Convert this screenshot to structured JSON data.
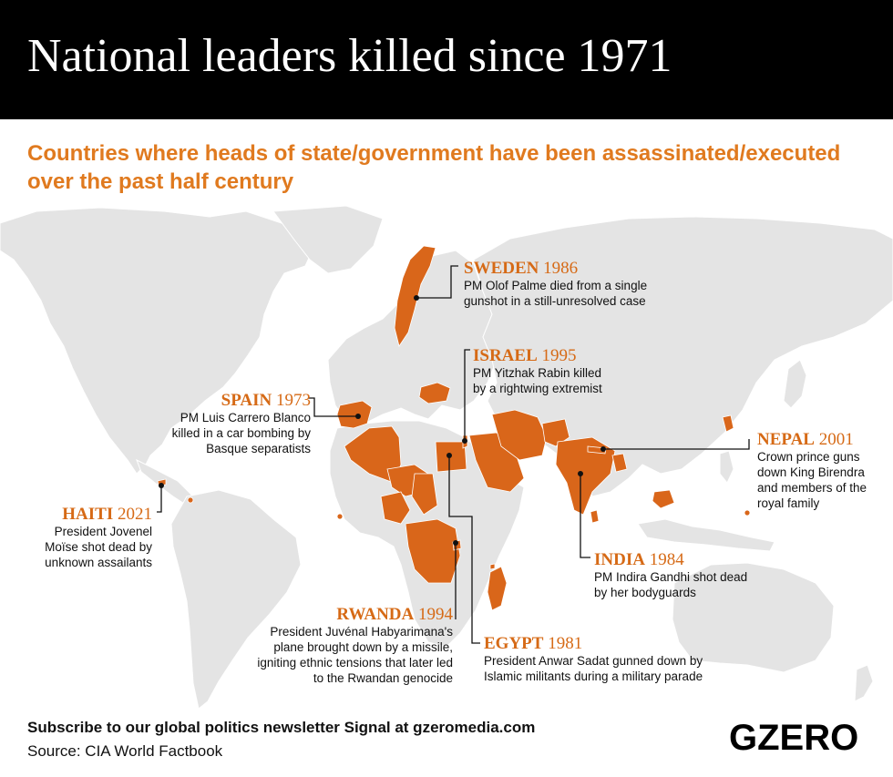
{
  "title": "National leaders killed since 1971",
  "subtitle": "Countries where heads of state/government have been assassinated/executed over the past half century",
  "annotations": {
    "sweden": {
      "country": "SWEDEN",
      "year": "1986",
      "lines": [
        "PM Olof Palme died from a single",
        "gunshot in a still-unresolved case"
      ]
    },
    "israel": {
      "country": "ISRAEL",
      "year": "1995",
      "lines": [
        "PM Yitzhak Rabin killed",
        "by a rightwing extremist"
      ]
    },
    "spain": {
      "country": "SPAIN",
      "year": "1973",
      "lines": [
        "PM Luis Carrero Blanco",
        "killed in a car bombing by",
        "Basque separatists"
      ]
    },
    "nepal": {
      "country": "NEPAL",
      "year": "2001",
      "lines": [
        "Crown prince guns",
        "down King Birendra",
        "and members of the",
        "royal family"
      ]
    },
    "haiti": {
      "country": "HAITI",
      "year": "2021",
      "lines": [
        "President Jovenel",
        "Moïse shot dead by",
        "unknown assailants"
      ]
    },
    "india": {
      "country": "INDIA",
      "year": "1984",
      "lines": [
        "PM Indira Gandhi shot dead",
        "by her bodyguards"
      ]
    },
    "rwanda": {
      "country": "RWANDA",
      "year": "1994",
      "lines": [
        "President Juvénal Habyarimana's",
        "plane brought down by a missile,",
        "igniting ethnic tensions that later led",
        "to the Rwandan genocide"
      ]
    },
    "egypt": {
      "country": "EGYPT",
      "year": "1981",
      "lines": [
        "President Anwar Sadat gunned down by",
        "Islamic militants during a military parade"
      ]
    }
  },
  "footer": {
    "newsletter": "Subscribe to our global politics newsletter Signal at gzeromedia.com",
    "source": "Source: CIA World Factbook"
  },
  "logo": "GZERO",
  "colors": {
    "highlight": "#d9661a",
    "land": "#e4e4e4",
    "accent_text": "#e07a1f",
    "header_bg": "#000000"
  }
}
